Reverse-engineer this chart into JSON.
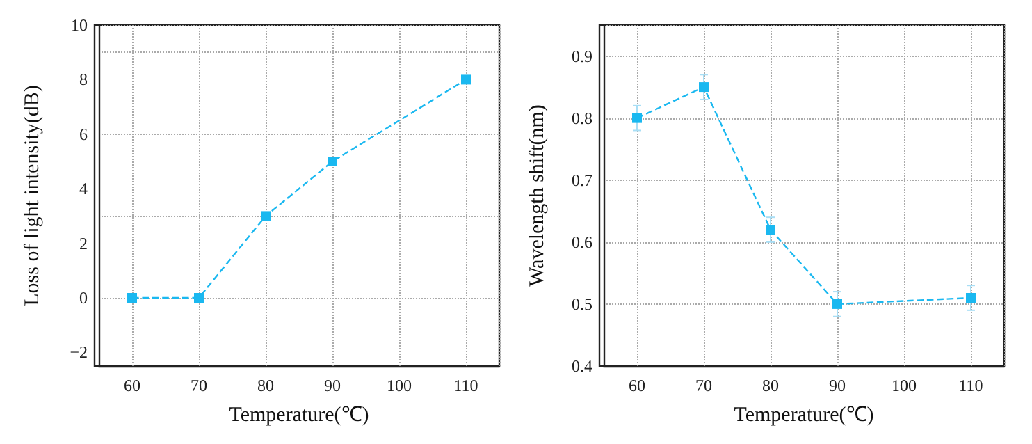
{
  "chart_data": [
    {
      "type": "line",
      "xlabel": "Temperature(℃)",
      "ylabel": "Loss of light intensity(dB)",
      "x": [
        60,
        70,
        80,
        90,
        110
      ],
      "series": [
        {
          "color": "#1ab8f0",
          "values": [
            0,
            0,
            3,
            5,
            8
          ]
        }
      ],
      "xlim": [
        55,
        115
      ],
      "xticks": [
        60,
        70,
        80,
        90,
        100,
        110
      ],
      "ylim": [
        -2.5,
        10
      ],
      "yticks": [
        -2,
        0,
        2,
        4,
        6,
        8,
        10
      ],
      "grid": true,
      "marker": "square",
      "line_style": "dashed"
    },
    {
      "type": "line",
      "xlabel": "Temperature(℃)",
      "ylabel": "Wavelength shift(nm)",
      "x": [
        60,
        70,
        80,
        90,
        110
      ],
      "series": [
        {
          "color": "#1ab8f0",
          "values": [
            0.8,
            0.85,
            0.62,
            0.5,
            0.51
          ],
          "errors": [
            0.02,
            0.02,
            0.02,
            0.02,
            0.02
          ]
        }
      ],
      "xlim": [
        55,
        115
      ],
      "xticks": [
        60,
        70,
        80,
        90,
        100,
        110
      ],
      "ylim": [
        0.4,
        0.95
      ],
      "yticks": [
        0.4,
        0.5,
        0.6,
        0.7,
        0.8,
        0.9
      ],
      "grid": true,
      "marker": "square",
      "line_style": "dashed"
    }
  ]
}
